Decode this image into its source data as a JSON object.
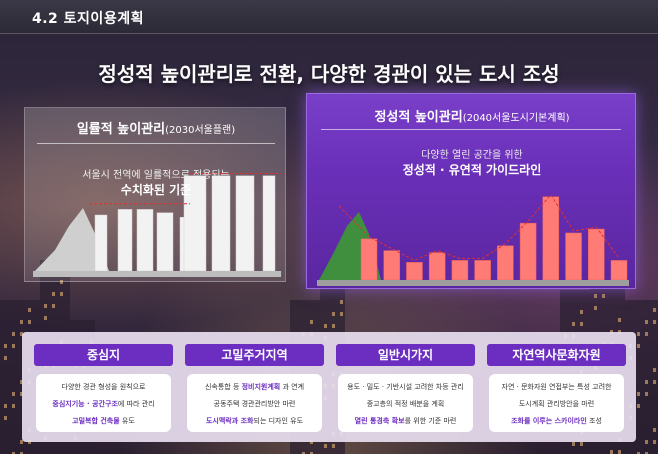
{
  "header": {
    "section_label": "4.2  토지이용계획",
    "main_title": "정성적 높이관리로 전환, 다양한 경관이 있는 도시 조성"
  },
  "left_panel": {
    "title": "일률적 높이관리",
    "title_sub": "(2030서울플랜)",
    "description": "서울시 전역에 일률적으로 적용되는",
    "emphasis": "수치화된 기준"
  },
  "right_panel": {
    "title": "정성적 높이관리",
    "title_sub": "(2040서울도시기본계획)",
    "description": "다양한 열린 공간을 위한",
    "emphasis": "정성적 · 유연적 가이드라인"
  },
  "chart_data": [
    {
      "type": "bar",
      "values": [
        0.5,
        0.55,
        0.55,
        0.52,
        0.48,
        0.85,
        0.85,
        0.85,
        0.85
      ],
      "limit_line": 0.87,
      "colors": {
        "bars": "#f2f2f2",
        "mountain": "#cfcfcf",
        "limit": "#e03030"
      }
    },
    {
      "type": "bar",
      "values": [
        0.42,
        0.3,
        0.18,
        0.28,
        0.2,
        0.2,
        0.35,
        0.58,
        0.85,
        0.48,
        0.52,
        0.2
      ],
      "colors": {
        "bars": "#ff7b75",
        "mountain": "#3f8f3f",
        "trend": "#e03030"
      }
    }
  ],
  "categories": [
    {
      "title": "중심지",
      "lines": [
        [
          {
            "t": "다양한 경관 형성을 원칙으로",
            "b": false
          }
        ],
        [
          {
            "t": "중심지기능 · 공간구조",
            "b": true
          },
          {
            "t": "에 따라 관리",
            "b": false
          }
        ],
        [
          {
            "t": "고밀복합 건축물",
            "b": true
          },
          {
            "t": " 유도",
            "b": false
          }
        ]
      ]
    },
    {
      "title": "고밀주거지역",
      "lines": [
        [
          {
            "t": "신속통합 등 ",
            "b": false
          },
          {
            "t": "정비지원계획",
            "b": true
          },
          {
            "t": " 과 연계",
            "b": false
          }
        ],
        [
          {
            "t": "공동주택 경관관리방안 마련",
            "b": false
          }
        ],
        [
          {
            "t": "도시맥락과 조화",
            "b": true
          },
          {
            "t": "되는 디자인 유도",
            "b": false
          }
        ]
      ]
    },
    {
      "title": "일반시가지",
      "lines": [
        [
          {
            "t": "용도 · 밀도 · 기반시설 고려한 차등 관리",
            "b": false
          }
        ],
        [
          {
            "t": "중고층의 적정 배분을 계획",
            "b": false
          }
        ],
        [
          {
            "t": "열린 통경축 확보",
            "b": true
          },
          {
            "t": "를 위한 기준 마련",
            "b": false
          }
        ]
      ]
    },
    {
      "title": "자연역사문화자원",
      "lines": [
        [
          {
            "t": "자연 · 문화자원 연접부는 특성 고려한",
            "b": false
          }
        ],
        [
          {
            "t": "도시계획 관리방안을 마련",
            "b": false
          }
        ],
        [
          {
            "t": "조화를 이루는 스카이라인",
            "b": true
          },
          {
            "t": " 조성",
            "b": false
          }
        ]
      ]
    }
  ],
  "colors": {
    "accent_purple": "#6c2ec0",
    "limit_red": "#e03030"
  }
}
